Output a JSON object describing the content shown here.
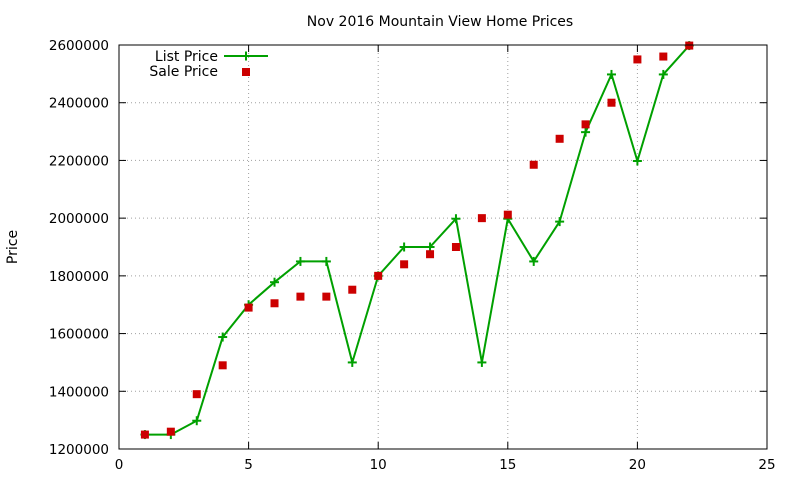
{
  "chart_data": {
    "type": "line",
    "title": "Nov 2016 Mountain View Home Prices",
    "xlabel": "",
    "ylabel": "Price",
    "xlim": [
      0,
      25
    ],
    "ylim": [
      1200000,
      2600000
    ],
    "x_ticks": [
      0,
      5,
      10,
      15,
      20,
      25
    ],
    "y_ticks": [
      1200000,
      1400000,
      1600000,
      1800000,
      2000000,
      2200000,
      2400000,
      2600000
    ],
    "grid": true,
    "legend_position": "top-left",
    "series": [
      {
        "name": "List Price",
        "style": "line with plus markers",
        "color": "#00a000",
        "points": [
          [
            1,
            1250000
          ],
          [
            2,
            1250000
          ],
          [
            3,
            1298000
          ],
          [
            4,
            1588000
          ],
          [
            5,
            1700000
          ],
          [
            6,
            1778000
          ],
          [
            7,
            1850000
          ],
          [
            8,
            1850000
          ],
          [
            9,
            1500000
          ],
          [
            10,
            1800000
          ],
          [
            11,
            1900000
          ],
          [
            12,
            1900000
          ],
          [
            13,
            1998000
          ],
          [
            14,
            1500000
          ],
          [
            15,
            1998000
          ],
          [
            16,
            1850000
          ],
          [
            17,
            1988000
          ],
          [
            18,
            2298000
          ],
          [
            19,
            2498000
          ],
          [
            20,
            2198000
          ],
          [
            21,
            2498000
          ],
          [
            22,
            2598000
          ]
        ]
      },
      {
        "name": "Sale Price",
        "style": "square markers",
        "color": "#cc0000",
        "points": [
          [
            1,
            1250000
          ],
          [
            2,
            1260000
          ],
          [
            3,
            1390000
          ],
          [
            4,
            1490000
          ],
          [
            5,
            1690000
          ],
          [
            6,
            1705000
          ],
          [
            7,
            1728000
          ],
          [
            8,
            1728000
          ],
          [
            9,
            1752000
          ],
          [
            10,
            1800000
          ],
          [
            11,
            1840000
          ],
          [
            12,
            1875000
          ],
          [
            13,
            1900000
          ],
          [
            14,
            2000000
          ],
          [
            15,
            2012000
          ],
          [
            16,
            2185000
          ],
          [
            17,
            2275000
          ],
          [
            18,
            2325000
          ],
          [
            19,
            2400000
          ],
          [
            20,
            2550000
          ],
          [
            21,
            2560000
          ],
          [
            22,
            2598000
          ]
        ]
      }
    ]
  }
}
